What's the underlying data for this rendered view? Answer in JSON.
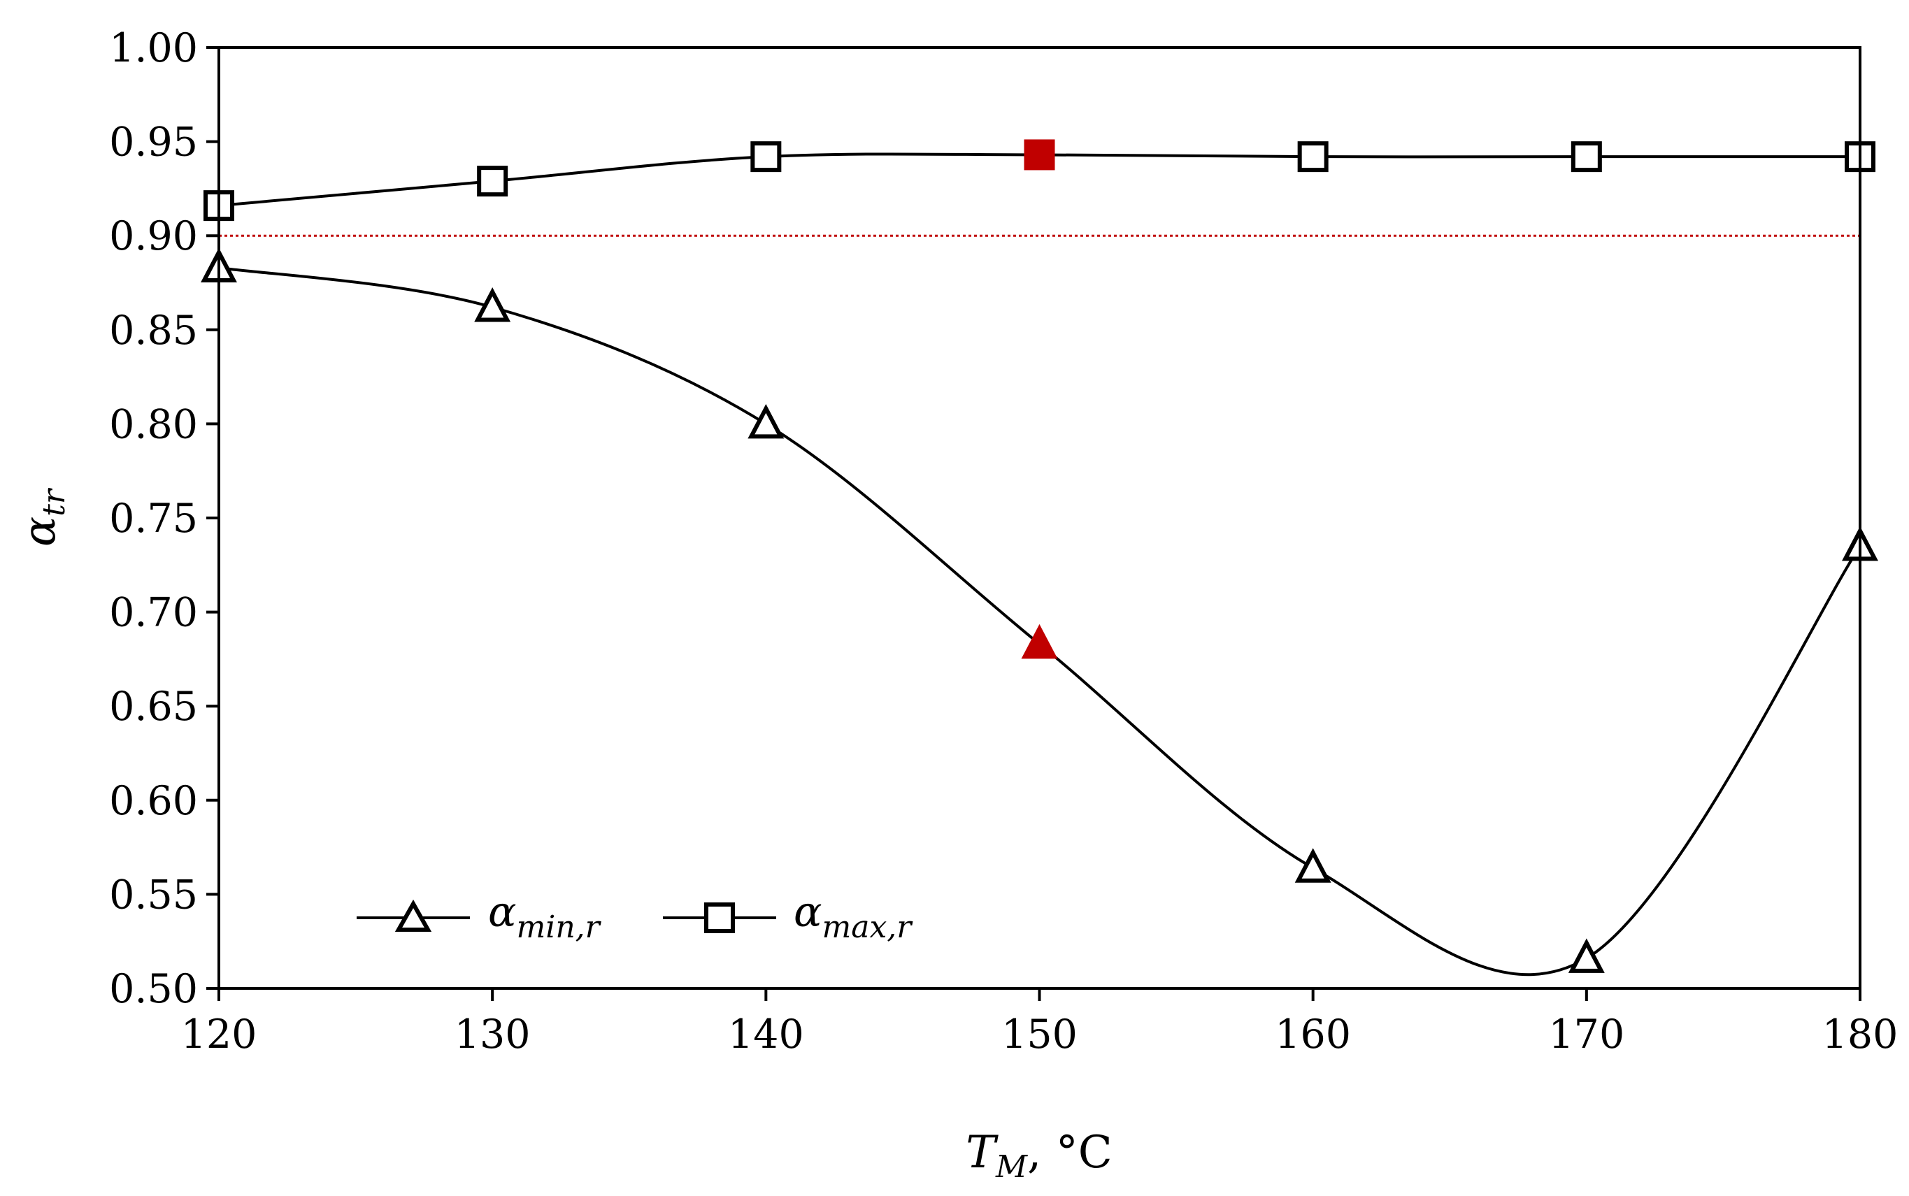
{
  "chart_data": {
    "type": "line",
    "title": "",
    "xlabel": {
      "main": "T",
      "sub": "M",
      "unit": ", °C"
    },
    "ylabel": {
      "main": "α",
      "sub": "tr"
    },
    "x": [
      120,
      130,
      140,
      150,
      160,
      170,
      180
    ],
    "xlim": [
      120,
      180
    ],
    "ylim": [
      0.5,
      1.0
    ],
    "x_ticks": [
      "120",
      "130",
      "140",
      "150",
      "160",
      "170",
      "180"
    ],
    "y_ticks": [
      "0.50",
      "0.55",
      "0.60",
      "0.65",
      "0.70",
      "0.75",
      "0.80",
      "0.85",
      "0.90",
      "0.95",
      "1.00"
    ],
    "grid": false,
    "series": [
      {
        "name": "α_min,r",
        "label_main": "α",
        "label_sub": "min,r",
        "marker": "triangle",
        "values": [
          0.883,
          0.862,
          0.8,
          0.683,
          0.564,
          0.516,
          0.735
        ],
        "highlight_index": 3
      },
      {
        "name": "α_max,r",
        "label_main": "α",
        "label_sub": "max,r",
        "marker": "square",
        "values": [
          0.916,
          0.929,
          0.942,
          0.943,
          0.942,
          0.942,
          0.942
        ],
        "highlight_index": 3
      }
    ],
    "reference_line": {
      "y": 0.9,
      "style": "dotted",
      "color": "#c00000"
    },
    "legend_position": "bottom-left",
    "colors": {
      "line": "#000000",
      "highlight": "#c00000",
      "reference": "#c00000"
    }
  }
}
